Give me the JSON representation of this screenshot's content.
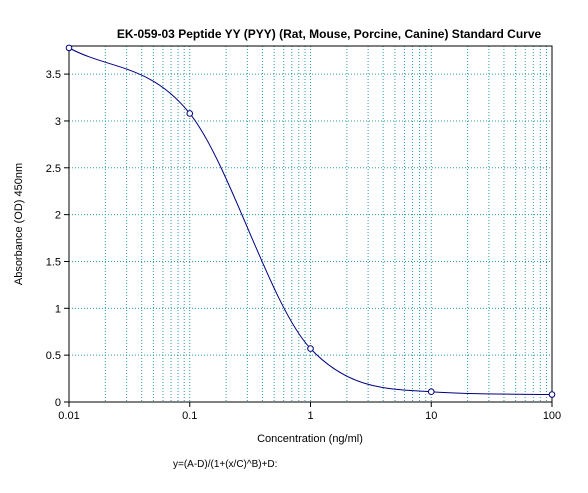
{
  "chart_data": {
    "type": "scatter",
    "title": "EK-059-03 Peptide YY (PYY) (Rat, Mouse, Porcine, Canine) Standard Curve",
    "xlabel": "Concentration (ng/ml)",
    "ylabel": "Absorbance (OD) 450nm",
    "formula": "y=(A-D)/(1+(x/C)^B)+D:",
    "x_scale": "log",
    "xlim": [
      0.01,
      100
    ],
    "ylim": [
      0,
      3.8
    ],
    "x_ticks": [
      0.01,
      0.1,
      1,
      10,
      100
    ],
    "x_tick_labels": [
      "0.01",
      "0.1",
      "1",
      "10",
      "100"
    ],
    "y_ticks": [
      0,
      0.5,
      1,
      1.5,
      2,
      2.5,
      3,
      3.5
    ],
    "y_tick_labels": [
      "0",
      "0.5",
      "1",
      "1.5",
      "2",
      "2.5",
      "3",
      "3.5"
    ],
    "grid": true,
    "series": [
      {
        "points": [
          {
            "x": 0.01,
            "y": 3.78
          },
          {
            "x": 0.1,
            "y": 3.08
          },
          {
            "x": 1,
            "y": 0.57
          },
          {
            "x": 10,
            "y": 0.11
          },
          {
            "x": 100,
            "y": 0.08
          }
        ]
      }
    ],
    "colors": {
      "curve": "#000080",
      "points": "#000080",
      "grid": "#2e9aa8",
      "axis": "#000000"
    }
  }
}
